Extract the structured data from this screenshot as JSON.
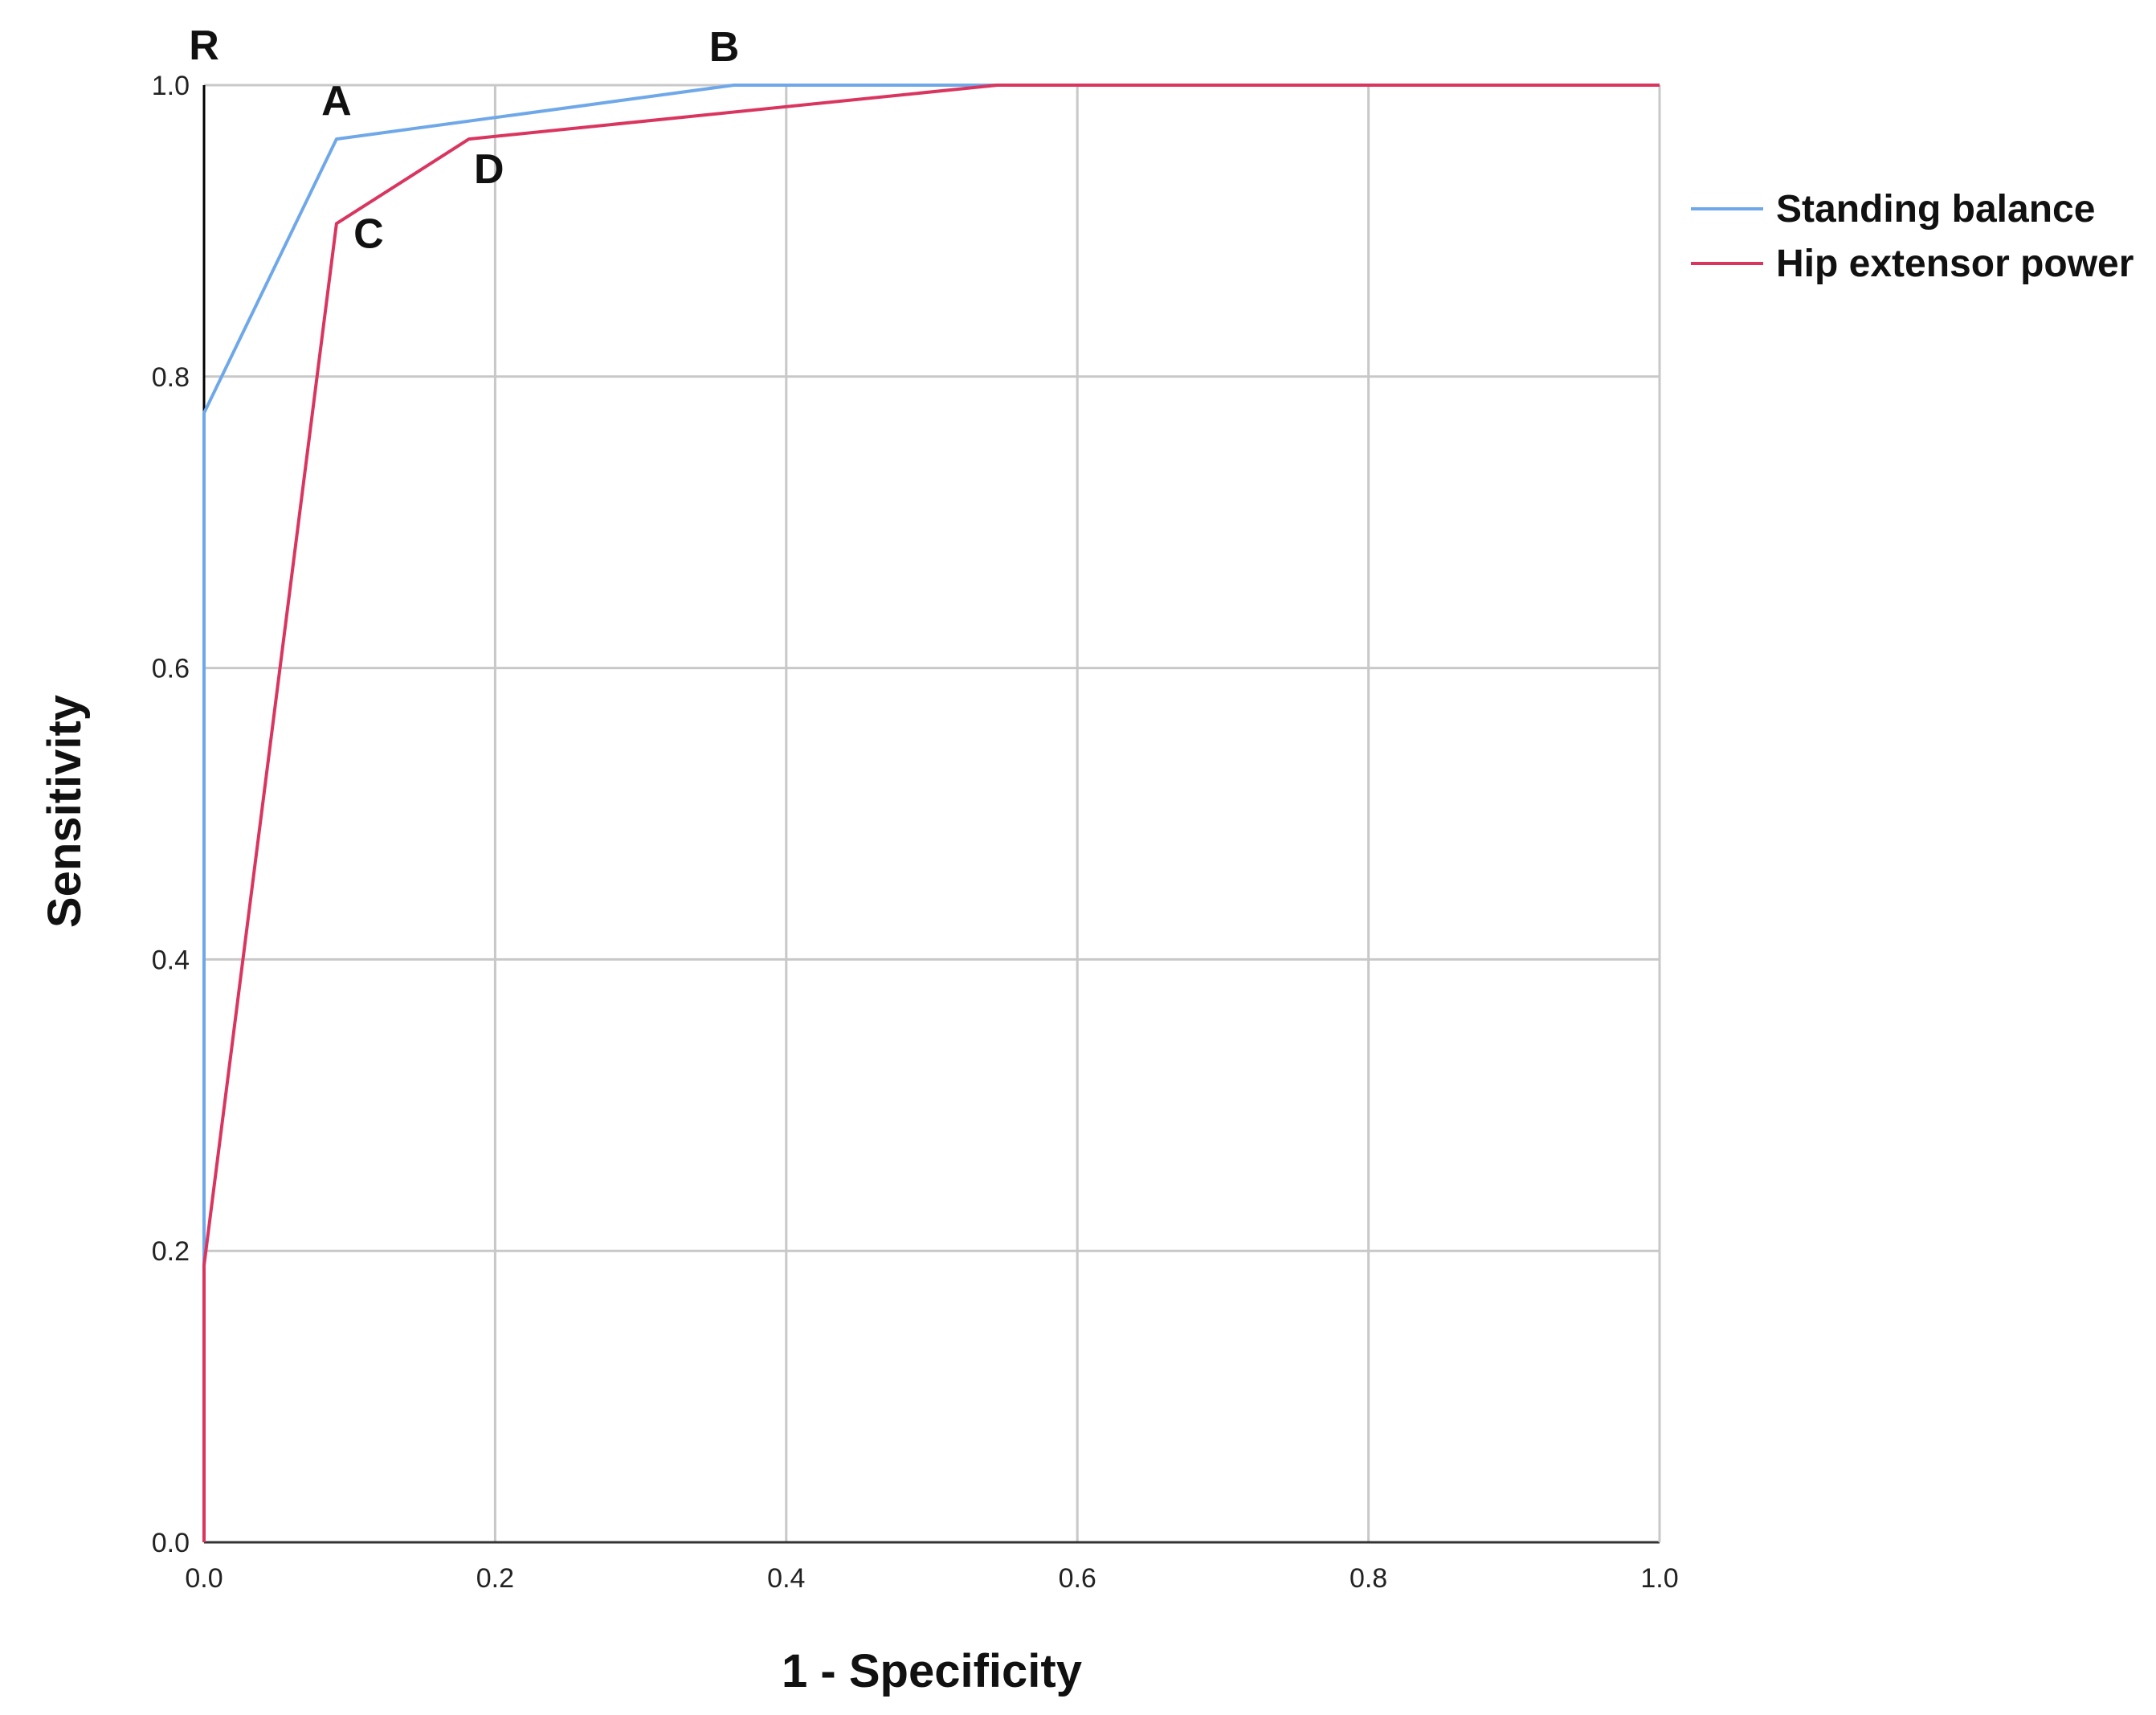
{
  "chart_data": {
    "type": "line",
    "title": "",
    "xlabel": "1 - Specificity",
    "ylabel": "Sensitivity",
    "xlim": [
      0,
      1
    ],
    "ylim": [
      0,
      1
    ],
    "xticks": [
      "0.0",
      "0.2",
      "0.4",
      "0.6",
      "0.8",
      "1.0"
    ],
    "yticks": [
      "0.0",
      "0.2",
      "0.4",
      "0.6",
      "0.8",
      "1.0"
    ],
    "grid": true,
    "legend": "right",
    "series": [
      {
        "name": "Standing balance",
        "color": "#6fa8e8",
        "x": [
          0,
          0,
          0.091,
          0.364,
          0.545,
          1.0
        ],
        "y": [
          0,
          0.775,
          0.963,
          1.0,
          1.0,
          1.0
        ]
      },
      {
        "name": "Hip extensor power",
        "color": "#d9355f",
        "x": [
          0,
          0,
          0.091,
          0.182,
          0.545,
          1.0
        ],
        "y": [
          0,
          0.19,
          0.905,
          0.963,
          1.0,
          1.0
        ]
      }
    ],
    "reference_line": {
      "x": [
        0,
        0
      ],
      "y": [
        0,
        1
      ],
      "color": "#000000"
    },
    "annotations": [
      {
        "text": "R",
        "x": 0.0,
        "y": 1.0,
        "dx": 0,
        "dy": -32
      },
      {
        "text": "A",
        "x": 0.091,
        "y": 0.963,
        "dx": 0,
        "dy": -30
      },
      {
        "text": "B",
        "x": 0.364,
        "y": 1.0,
        "dx": -12,
        "dy": -30
      },
      {
        "text": "C",
        "x": 0.091,
        "y": 0.905,
        "dx": 40,
        "dy": 30
      },
      {
        "text": "D",
        "x": 0.182,
        "y": 0.963,
        "dx": 25,
        "dy": 55
      }
    ]
  }
}
